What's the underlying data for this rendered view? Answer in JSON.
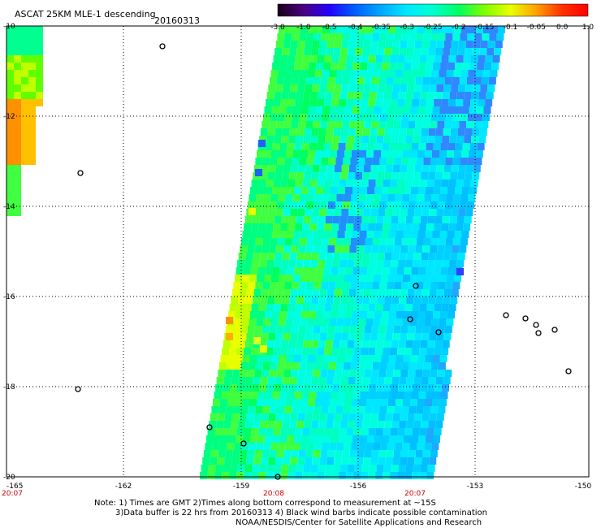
{
  "title": "ASCAT 25KM MLE-1 descending",
  "date": "20160313",
  "colorbar": {
    "labels": [
      "-3.0",
      "-1.0",
      "-0.5",
      "-0.4",
      "-0.35",
      "-0.3",
      "-0.25",
      "-0.2",
      "-0.15",
      "-0.1",
      "-0.05",
      "0.0",
      "1.0"
    ],
    "colors": [
      "#1a001a",
      "#4a0080",
      "#2200ff",
      "#0060ff",
      "#00a8ff",
      "#00e8ff",
      "#00ffd0",
      "#00ff60",
      "#80ff00",
      "#e8ff00",
      "#ffa000",
      "#ff3000",
      "#ff0000"
    ]
  },
  "map": {
    "lat_labels": [
      "-10",
      "-12",
      "-14",
      "-16",
      "-18",
      "-20"
    ],
    "lon_labels": [
      "-165",
      "-162",
      "-159",
      "-156",
      "-153",
      "-150"
    ],
    "time_labels": [
      "20:07",
      "20:08",
      "20:07"
    ],
    "time_color": "#cc0000"
  },
  "notes": {
    "line1": "Note: 1) Times are GMT 2)Times along bottom correspond to measurement at ~15S",
    "line2": "3)Data buffer is 22 hrs from 20160313 4) Black wind barbs indicate possible contamination",
    "line3": "NOAA/NESDIS/Center for Satellite Applications and Research"
  }
}
